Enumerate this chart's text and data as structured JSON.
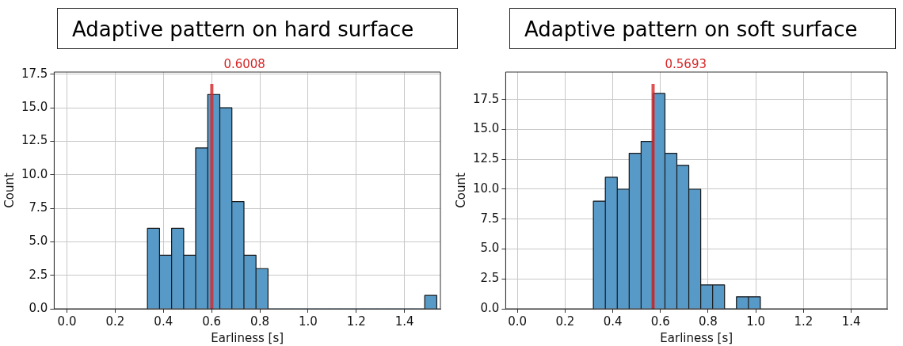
{
  "chart_data": [
    {
      "type": "histogram",
      "title": "Adaptive pattern on hard surface",
      "xlabel": "Earliness [s]",
      "ylabel": "Count",
      "color": "#5799c7",
      "bins": [
        0.334,
        0.384,
        0.434,
        0.484,
        0.534,
        0.584,
        0.634,
        0.684,
        0.734,
        0.784,
        0.834,
        0.884,
        0.934,
        0.984,
        1.034,
        1.084,
        1.134,
        1.184,
        1.234,
        1.284,
        1.334,
        1.384,
        1.434,
        1.484,
        1.534
      ],
      "values": [
        6,
        4,
        6,
        4,
        12,
        16,
        15,
        8,
        4,
        3,
        0,
        0,
        0,
        0,
        0,
        0,
        0,
        0,
        0,
        0,
        0,
        0,
        0,
        1
      ],
      "xlim": [
        -0.053,
        1.549
      ],
      "ylim": [
        0,
        17.67
      ],
      "xticks": [
        {
          "value": 0,
          "label": "0.0"
        },
        {
          "value": 0.2,
          "label": "0.2"
        },
        {
          "value": 0.4,
          "label": "0.4"
        },
        {
          "value": 0.6,
          "label": "0.6"
        },
        {
          "value": 0.8,
          "label": "0.8"
        },
        {
          "value": 1,
          "label": "1.0"
        },
        {
          "value": 1.2,
          "label": "1.2"
        },
        {
          "value": 1.4,
          "label": "1.4"
        }
      ],
      "yticks": [
        {
          "value": 0,
          "label": "0.0"
        },
        {
          "value": 2.5,
          "label": "2.5"
        },
        {
          "value": 5,
          "label": "5.0"
        },
        {
          "value": 7.5,
          "label": "7.5"
        },
        {
          "value": 10,
          "label": "10.0"
        },
        {
          "value": 12.5,
          "label": "12.5"
        },
        {
          "value": 15,
          "label": "15.0"
        },
        {
          "value": 17.5,
          "label": "17.5"
        }
      ],
      "grid": true,
      "ref_lines": [
        {
          "axis": "x",
          "value": 0.6008,
          "label": "0.6008",
          "color": "#d62728"
        }
      ]
    },
    {
      "type": "histogram",
      "title": "Adaptive pattern on soft surface",
      "xlabel": "Earliness [s]",
      "ylabel": "Count",
      "color": "#5799c7",
      "bins": [
        0.319,
        0.369,
        0.419,
        0.469,
        0.519,
        0.569,
        0.619,
        0.669,
        0.719,
        0.769,
        0.819,
        0.869,
        0.919,
        0.969,
        1.019
      ],
      "values": [
        9,
        11,
        10,
        13,
        14,
        18,
        13,
        12,
        10,
        2,
        2,
        0,
        1,
        1
      ],
      "xlim": [
        -0.049,
        1.551
      ],
      "ylim": [
        0,
        19.8
      ],
      "xticks": [
        {
          "value": 0,
          "label": "0.0"
        },
        {
          "value": 0.2,
          "label": "0.2"
        },
        {
          "value": 0.4,
          "label": "0.4"
        },
        {
          "value": 0.6,
          "label": "0.6"
        },
        {
          "value": 0.8,
          "label": "0.8"
        },
        {
          "value": 1,
          "label": "1.0"
        },
        {
          "value": 1.2,
          "label": "1.2"
        },
        {
          "value": 1.4,
          "label": "1.4"
        }
      ],
      "yticks": [
        {
          "value": 0,
          "label": "0.0"
        },
        {
          "value": 2.5,
          "label": "2.5"
        },
        {
          "value": 5,
          "label": "5.0"
        },
        {
          "value": 7.5,
          "label": "7.5"
        },
        {
          "value": 10,
          "label": "10.0"
        },
        {
          "value": 12.5,
          "label": "12.5"
        },
        {
          "value": 15,
          "label": "15.0"
        },
        {
          "value": 17.5,
          "label": "17.5"
        }
      ],
      "grid": true,
      "ref_lines": [
        {
          "axis": "x",
          "value": 0.5693,
          "label": "0.5693",
          "color": "#d62728"
        }
      ]
    }
  ]
}
